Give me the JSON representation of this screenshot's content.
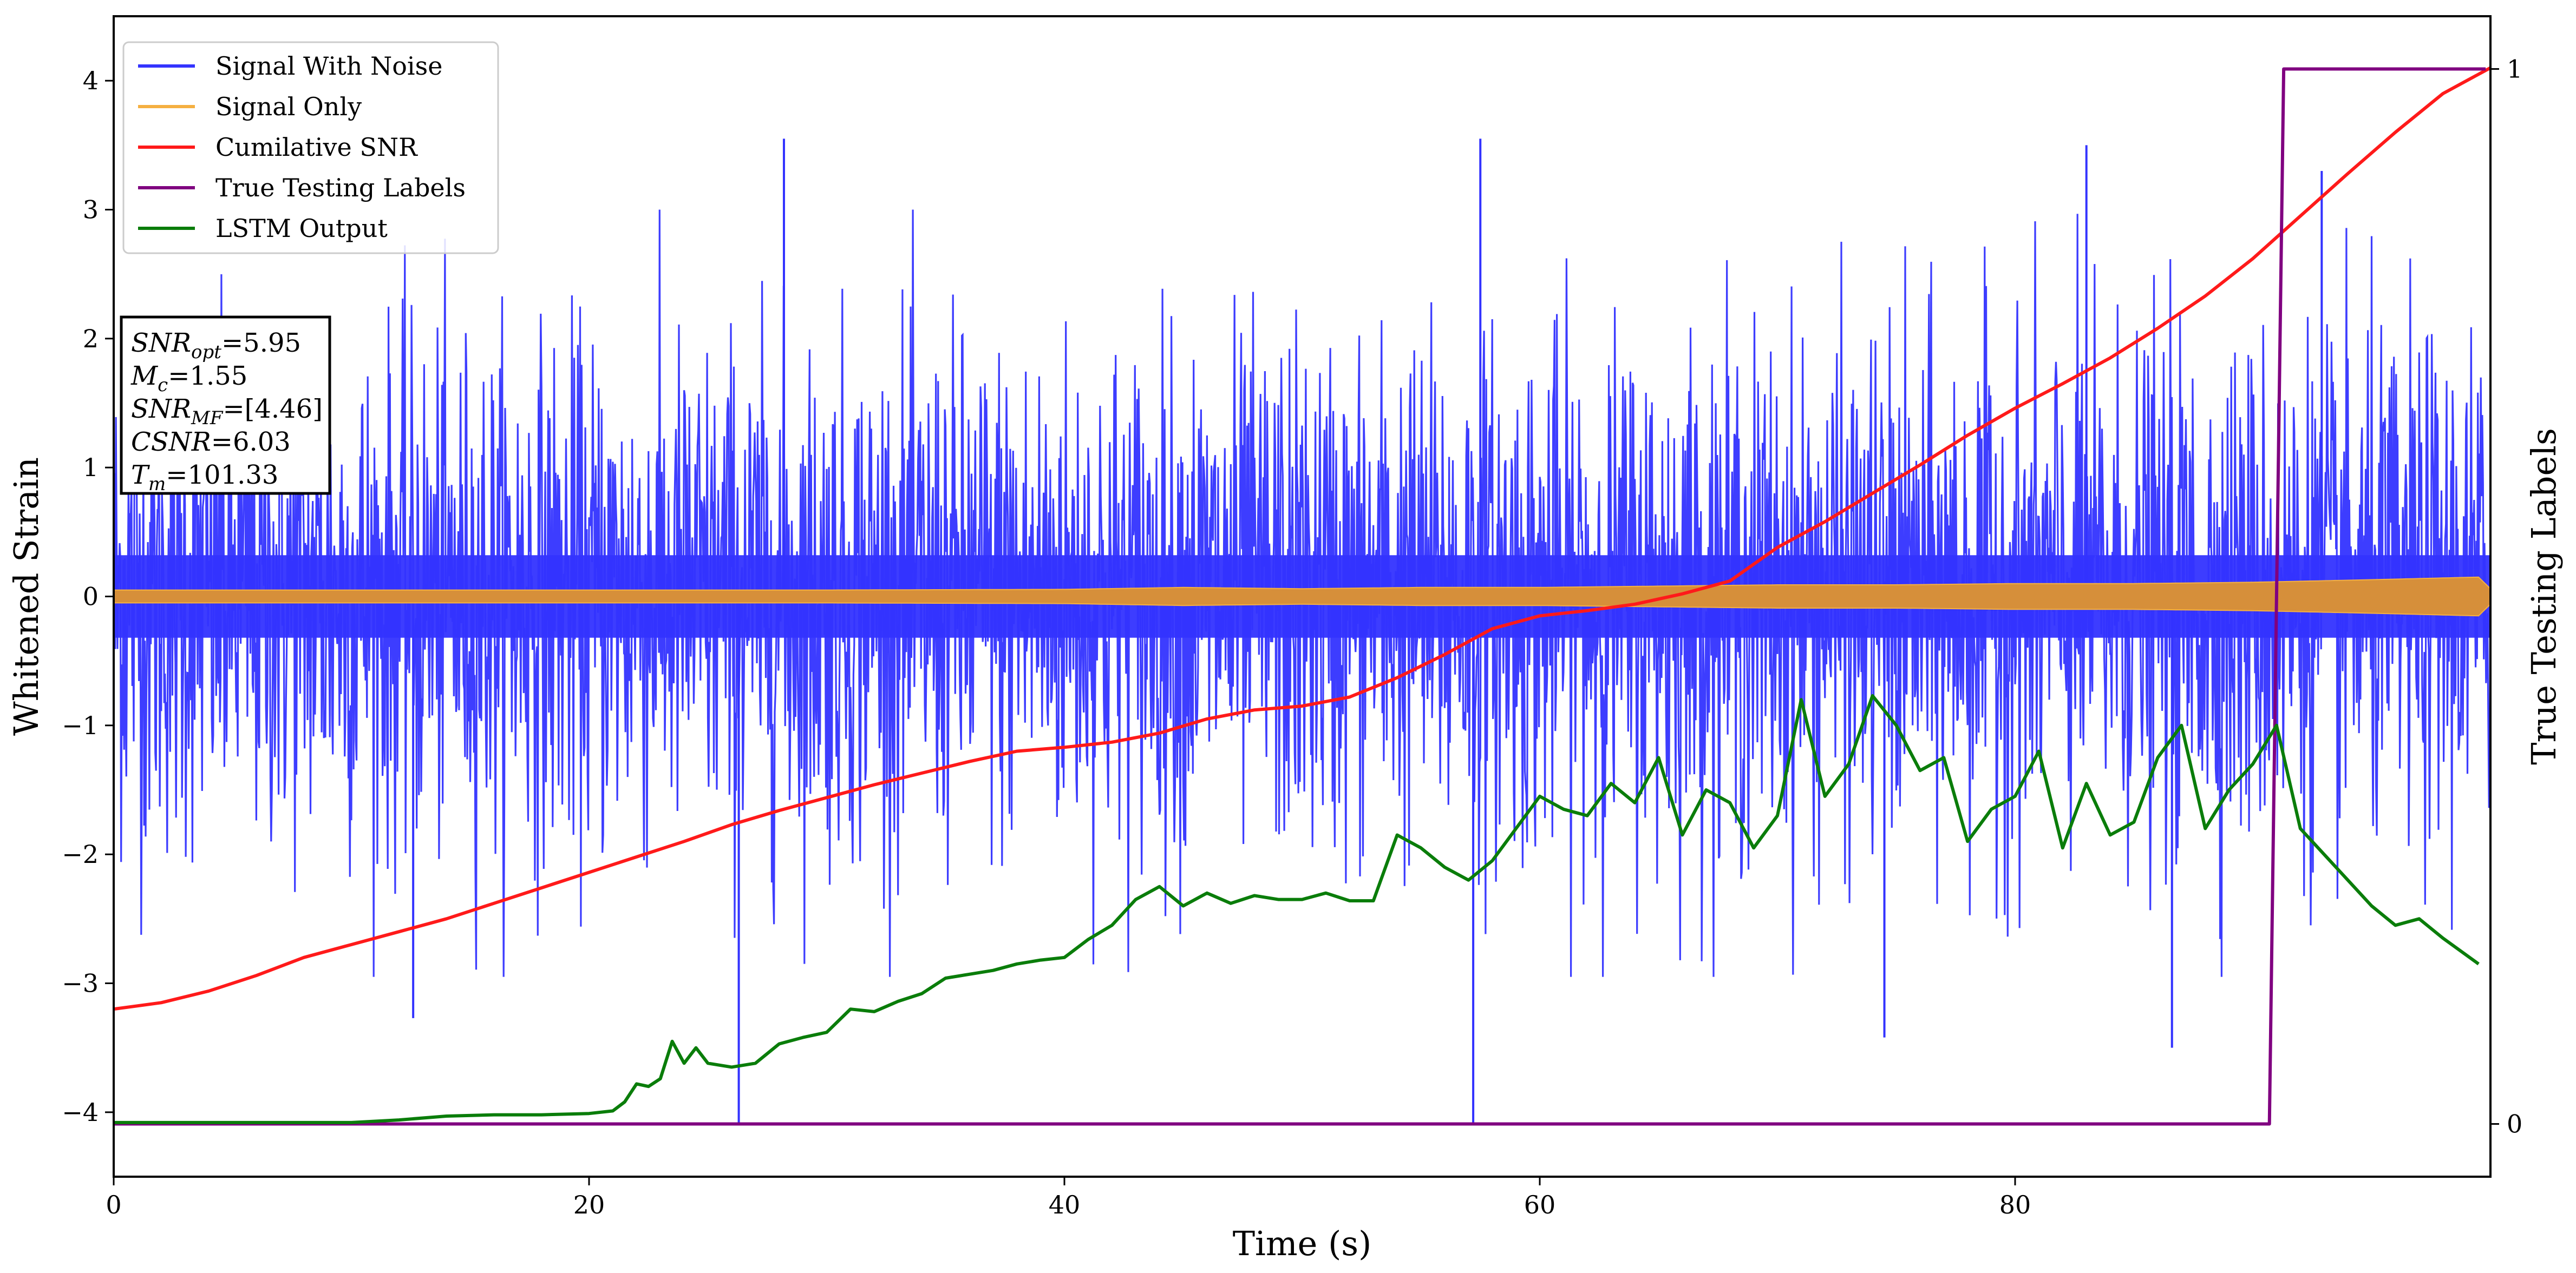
{
  "chart_data": {
    "type": "line",
    "xlabel": "Time (s)",
    "ylabel": "Whitened Strain",
    "y2label": "True Testing Labels",
    "xlim": [
      0,
      100
    ],
    "ylim": [
      -4.5,
      4.5
    ],
    "y2lim": [
      -0.05,
      1.05
    ],
    "xticks": [
      0,
      20,
      40,
      60,
      80
    ],
    "yticks": [
      -4,
      -3,
      -2,
      -1,
      0,
      1,
      2,
      3,
      4
    ],
    "y2ticks": [
      0,
      1
    ],
    "grid": false,
    "legend_position": "upper-left",
    "colors": {
      "signal_with_noise": "#3333ff",
      "signal_only": "#f5b041",
      "signal_only_fill": "#d68f3a",
      "cumulative_snr": "#ff1a1a",
      "true_labels": "#800080",
      "lstm_output": "#0a7d0a"
    },
    "series": [
      {
        "name": "Signal With Noise",
        "axis": "left",
        "style": "noise",
        "sigma": 1.0,
        "spikes": [
          [
            12.6,
            -3.27
          ],
          [
            26.3,
            -4.1
          ],
          [
            28.2,
            3.55
          ],
          [
            57.2,
            -4.1
          ],
          [
            57.5,
            3.55
          ],
          [
            74.5,
            -3.42
          ],
          [
            83.0,
            3.5
          ],
          [
            86.6,
            -3.5
          ],
          [
            92.9,
            3.3
          ]
        ]
      },
      {
        "name": "Signal Only",
        "axis": "left",
        "style": "band",
        "x": [
          0,
          10,
          20,
          30,
          40,
          45,
          50,
          55,
          60,
          65,
          70,
          75,
          80,
          85,
          90,
          95,
          99.5,
          100
        ],
        "amplitude": [
          0.05,
          0.05,
          0.05,
          0.05,
          0.055,
          0.07,
          0.06,
          0.07,
          0.07,
          0.08,
          0.09,
          0.09,
          0.1,
          0.1,
          0.11,
          0.13,
          0.15,
          0.06
        ]
      },
      {
        "name": "Cumilative SNR",
        "axis": "left",
        "x": [
          0,
          2,
          4,
          6,
          8,
          10,
          12,
          14,
          16,
          18,
          20,
          22,
          24,
          26,
          28,
          30,
          32,
          34,
          36,
          38,
          40,
          42,
          44,
          46,
          48,
          50,
          52,
          54,
          56,
          58,
          60,
          62,
          64,
          66,
          68,
          70,
          72,
          74,
          76,
          78,
          80,
          82,
          84,
          86,
          88,
          90,
          92,
          94,
          96,
          98,
          100
        ],
        "values": [
          -3.2,
          -3.15,
          -3.06,
          -2.94,
          -2.8,
          -2.7,
          -2.6,
          -2.5,
          -2.38,
          -2.26,
          -2.14,
          -2.02,
          -1.9,
          -1.77,
          -1.66,
          -1.56,
          -1.46,
          -1.37,
          -1.28,
          -1.2,
          -1.17,
          -1.13,
          -1.06,
          -0.95,
          -0.88,
          -0.85,
          -0.78,
          -0.63,
          -0.45,
          -0.25,
          -0.15,
          -0.11,
          -0.06,
          0.02,
          0.12,
          0.38,
          0.58,
          0.8,
          1.02,
          1.25,
          1.46,
          1.65,
          1.85,
          2.08,
          2.33,
          2.62,
          2.95,
          3.28,
          3.6,
          3.9,
          4.1
        ]
      },
      {
        "name": "True Testing Labels",
        "axis": "right",
        "x": [
          0,
          90.7,
          91.3,
          99.8
        ],
        "values": [
          0,
          0,
          1,
          1
        ]
      },
      {
        "name": "LSTM Output",
        "axis": "left",
        "x": [
          0,
          5,
          10,
          12,
          14,
          16,
          18,
          20,
          21,
          21.5,
          22,
          22.5,
          23,
          23.5,
          24,
          24.5,
          25,
          26,
          27,
          28,
          29,
          30,
          31,
          32,
          33,
          34,
          35,
          36,
          37,
          38,
          39,
          40,
          41,
          42,
          43,
          44,
          45,
          46,
          47,
          48,
          49,
          50,
          51,
          52,
          53,
          54,
          55,
          56,
          57,
          58,
          59,
          60,
          61,
          62,
          63,
          64,
          65,
          66,
          67,
          68,
          69,
          70,
          71,
          72,
          73,
          74,
          75,
          76,
          77,
          78,
          79,
          80,
          81,
          82,
          83,
          84,
          85,
          86,
          87,
          88,
          89,
          90,
          91,
          92,
          93,
          94,
          95,
          96,
          97,
          98,
          99.5
        ],
        "values": [
          -4.08,
          -4.08,
          -4.08,
          -4.06,
          -4.03,
          -4.02,
          -4.02,
          -4.01,
          -3.99,
          -3.92,
          -3.78,
          -3.8,
          -3.74,
          -3.45,
          -3.62,
          -3.5,
          -3.62,
          -3.65,
          -3.62,
          -3.47,
          -3.42,
          -3.38,
          -3.2,
          -3.22,
          -3.14,
          -3.08,
          -2.96,
          -2.93,
          -2.9,
          -2.85,
          -2.82,
          -2.8,
          -2.66,
          -2.55,
          -2.35,
          -2.25,
          -2.4,
          -2.3,
          -2.38,
          -2.32,
          -2.35,
          -2.35,
          -2.3,
          -2.36,
          -2.36,
          -1.85,
          -1.95,
          -2.1,
          -2.2,
          -2.05,
          -1.8,
          -1.55,
          -1.65,
          -1.7,
          -1.45,
          -1.6,
          -1.25,
          -1.85,
          -1.5,
          -1.6,
          -1.95,
          -1.7,
          -0.8,
          -1.55,
          -1.3,
          -0.77,
          -1.0,
          -1.35,
          -1.25,
          -1.9,
          -1.65,
          -1.55,
          -1.2,
          -1.95,
          -1.45,
          -1.85,
          -1.75,
          -1.25,
          -1.0,
          -1.8,
          -1.5,
          -1.3,
          -1.0,
          -1.8,
          -2.0,
          -2.2,
          -2.4,
          -2.55,
          -2.5,
          -2.65,
          -2.85
        ]
      }
    ],
    "annotation": [
      {
        "base": "SNR",
        "sub": "opt",
        "value": "=5.95"
      },
      {
        "base": "M",
        "sub": "c",
        "value": "=1.55"
      },
      {
        "base": "SNR",
        "sub": "MF",
        "value": "=[4.46]"
      },
      {
        "base": "CSNR",
        "sub": "",
        "value": "=6.03"
      },
      {
        "base": "T",
        "sub": "m",
        "value": "=101.33"
      }
    ]
  }
}
